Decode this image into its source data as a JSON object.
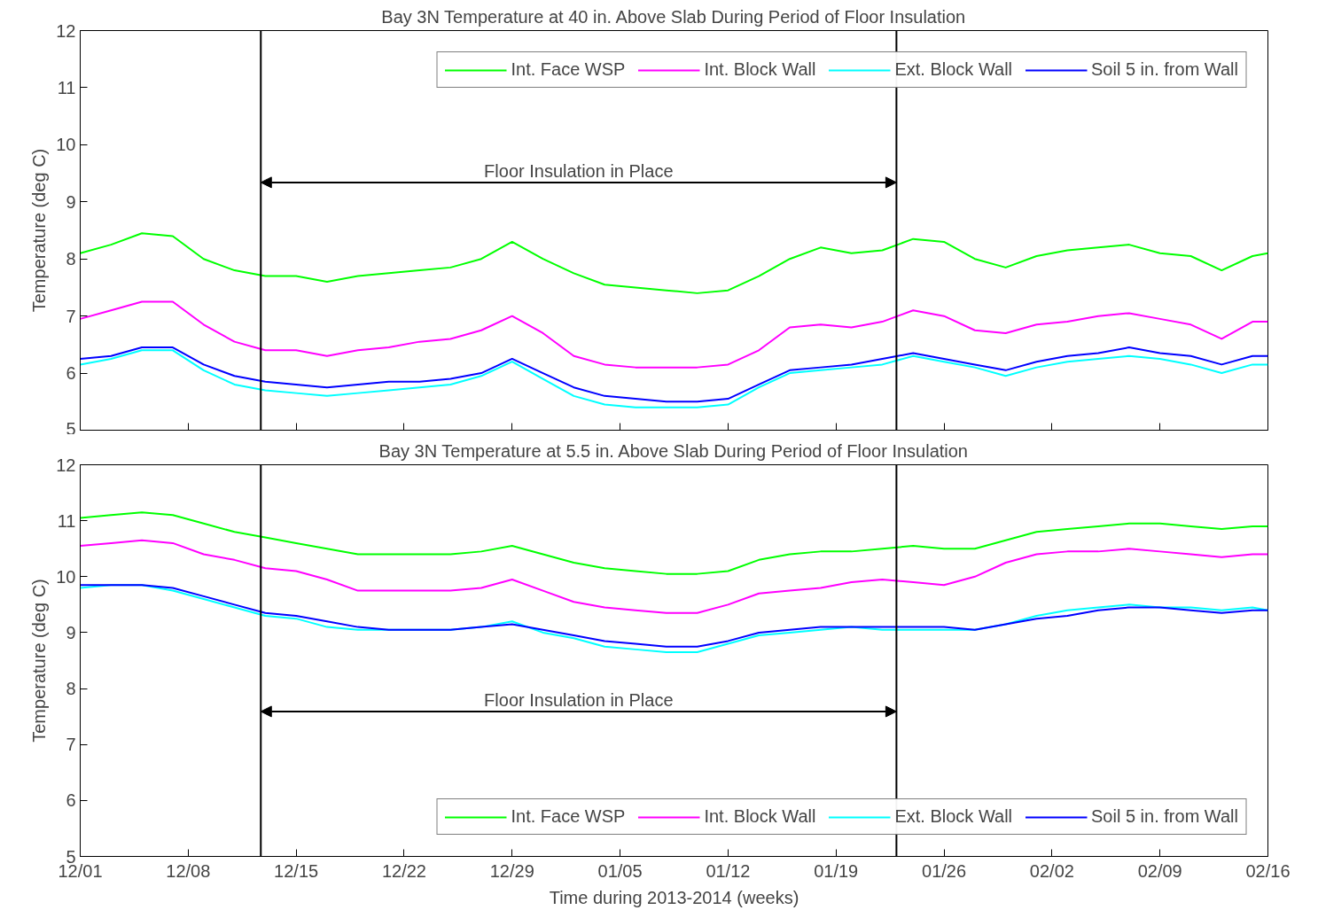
{
  "chart_data": [
    {
      "type": "line",
      "title": "Bay 3N Temperature at 40 in. Above Slab During Period of Floor Insulation",
      "ylabel": "Temperature (deg C)",
      "x": [
        "2013-12-01",
        "2013-12-03",
        "2013-12-05",
        "2013-12-07",
        "2013-12-09",
        "2013-12-11",
        "2013-12-13",
        "2013-12-15",
        "2013-12-17",
        "2013-12-19",
        "2013-12-21",
        "2013-12-23",
        "2013-12-25",
        "2013-12-27",
        "2013-12-29",
        "2013-12-31",
        "2014-01-02",
        "2014-01-04",
        "2014-01-06",
        "2014-01-08",
        "2014-01-10",
        "2014-01-12",
        "2014-01-14",
        "2014-01-16",
        "2014-01-18",
        "2014-01-20",
        "2014-01-22",
        "2014-01-24",
        "2014-01-26",
        "2014-01-28",
        "2014-01-30",
        "2014-02-01",
        "2014-02-03",
        "2014-02-05",
        "2014-02-07",
        "2014-02-09",
        "2014-02-11",
        "2014-02-13",
        "2014-02-15",
        "2014-02-16"
      ],
      "series": [
        {
          "name": "Int. Face WSP",
          "color": "#00ff00",
          "values": [
            8.1,
            8.25,
            8.45,
            8.4,
            8.0,
            7.8,
            7.7,
            7.7,
            7.6,
            7.7,
            7.75,
            7.8,
            7.85,
            8.0,
            8.3,
            8.0,
            7.75,
            7.55,
            7.5,
            7.45,
            7.4,
            7.45,
            7.7,
            8.0,
            8.2,
            8.1,
            8.15,
            8.35,
            8.3,
            8.0,
            7.85,
            8.05,
            8.15,
            8.2,
            8.25,
            8.1,
            8.05,
            7.8,
            8.05,
            8.1
          ]
        },
        {
          "name": "Int. Block Wall",
          "color": "#ff00ff",
          "values": [
            6.95,
            7.1,
            7.25,
            7.25,
            6.85,
            6.55,
            6.4,
            6.4,
            6.3,
            6.4,
            6.45,
            6.55,
            6.6,
            6.75,
            7.0,
            6.7,
            6.3,
            6.15,
            6.1,
            6.1,
            6.1,
            6.15,
            6.4,
            6.8,
            6.85,
            6.8,
            6.9,
            7.1,
            7.0,
            6.75,
            6.7,
            6.85,
            6.9,
            7.0,
            7.05,
            6.95,
            6.85,
            6.6,
            6.9,
            6.9
          ]
        },
        {
          "name": "Ext. Block Wall",
          "color": "#00ffff",
          "values": [
            6.15,
            6.25,
            6.4,
            6.4,
            6.05,
            5.8,
            5.7,
            5.65,
            5.6,
            5.65,
            5.7,
            5.75,
            5.8,
            5.95,
            6.2,
            5.9,
            5.6,
            5.45,
            5.4,
            5.4,
            5.4,
            5.45,
            5.75,
            6.0,
            6.05,
            6.1,
            6.15,
            6.3,
            6.2,
            6.1,
            5.95,
            6.1,
            6.2,
            6.25,
            6.3,
            6.25,
            6.15,
            6.0,
            6.15,
            6.15
          ]
        },
        {
          "name": "Soil 5 in. from Wall",
          "color": "#0000ff",
          "values": [
            6.25,
            6.3,
            6.45,
            6.45,
            6.15,
            5.95,
            5.85,
            5.8,
            5.75,
            5.8,
            5.85,
            5.85,
            5.9,
            6.0,
            6.25,
            6.0,
            5.75,
            5.6,
            5.55,
            5.5,
            5.5,
            5.55,
            5.8,
            6.05,
            6.1,
            6.15,
            6.25,
            6.35,
            6.25,
            6.15,
            6.05,
            6.2,
            6.3,
            6.35,
            6.45,
            6.35,
            6.3,
            6.15,
            6.3,
            6.3
          ]
        }
      ],
      "xlim": [
        "2013-12-01",
        "2014-02-16"
      ],
      "xticks": [
        {
          "value": "2013-12-01",
          "label": null
        },
        {
          "value": "2013-12-08",
          "label": null
        },
        {
          "value": "2013-12-15",
          "label": null
        },
        {
          "value": "2013-12-22",
          "label": null
        },
        {
          "value": "2013-12-29",
          "label": null
        },
        {
          "value": "2014-01-05",
          "label": null
        },
        {
          "value": "2014-01-12",
          "label": null
        },
        {
          "value": "2014-01-19",
          "label": null
        },
        {
          "value": "2014-01-26",
          "label": null
        },
        {
          "value": "2014-02-02",
          "label": null
        },
        {
          "value": "2014-02-09",
          "label": null
        },
        {
          "value": "2014-02-16",
          "label": null
        }
      ],
      "ylim": [
        5,
        12
      ],
      "yticks": [
        5,
        6,
        7,
        8,
        9,
        10,
        11,
        12
      ],
      "tick_labels": "y",
      "grid": false,
      "legend": "top right",
      "ref_lines": [
        {
          "axis": "x",
          "value": "2013-12-12T17:00",
          "color": "#000000"
        },
        {
          "axis": "x",
          "value": "2014-01-22T22:00",
          "color": "#000000"
        }
      ],
      "annotations": [
        "Floor Insulation in Place"
      ]
    },
    {
      "type": "line",
      "title": "Bay 3N Temperature at 5.5 in. Above Slab During Period of Floor Insulation",
      "ylabel": "Temperature (deg C)",
      "xlabel": "Time during 2013-2014 (weeks)",
      "x": [
        "2013-12-01",
        "2013-12-03",
        "2013-12-05",
        "2013-12-07",
        "2013-12-09",
        "2013-12-11",
        "2013-12-13",
        "2013-12-15",
        "2013-12-17",
        "2013-12-19",
        "2013-12-21",
        "2013-12-23",
        "2013-12-25",
        "2013-12-27",
        "2013-12-29",
        "2013-12-31",
        "2014-01-02",
        "2014-01-04",
        "2014-01-06",
        "2014-01-08",
        "2014-01-10",
        "2014-01-12",
        "2014-01-14",
        "2014-01-16",
        "2014-01-18",
        "2014-01-20",
        "2014-01-22",
        "2014-01-24",
        "2014-01-26",
        "2014-01-28",
        "2014-01-30",
        "2014-02-01",
        "2014-02-03",
        "2014-02-05",
        "2014-02-07",
        "2014-02-09",
        "2014-02-11",
        "2014-02-13",
        "2014-02-15",
        "2014-02-16"
      ],
      "series": [
        {
          "name": "Int. Face WSP",
          "color": "#00ff00",
          "values": [
            11.05,
            11.1,
            11.15,
            11.1,
            10.95,
            10.8,
            10.7,
            10.6,
            10.5,
            10.4,
            10.4,
            10.4,
            10.4,
            10.45,
            10.55,
            10.4,
            10.25,
            10.15,
            10.1,
            10.05,
            10.05,
            10.1,
            10.3,
            10.4,
            10.45,
            10.45,
            10.5,
            10.55,
            10.5,
            10.5,
            10.65,
            10.8,
            10.85,
            10.9,
            10.95,
            10.95,
            10.9,
            10.85,
            10.9,
            10.9
          ]
        },
        {
          "name": "Int. Block Wall",
          "color": "#ff00ff",
          "values": [
            10.55,
            10.6,
            10.65,
            10.6,
            10.4,
            10.3,
            10.15,
            10.1,
            9.95,
            9.75,
            9.75,
            9.75,
            9.75,
            9.8,
            9.95,
            9.75,
            9.55,
            9.45,
            9.4,
            9.35,
            9.35,
            9.5,
            9.7,
            9.75,
            9.8,
            9.9,
            9.95,
            9.9,
            9.85,
            10.0,
            10.25,
            10.4,
            10.45,
            10.45,
            10.5,
            10.45,
            10.4,
            10.35,
            10.4,
            10.4
          ]
        },
        {
          "name": "Ext. Block Wall",
          "color": "#00ffff",
          "values": [
            9.8,
            9.85,
            9.85,
            9.75,
            9.6,
            9.45,
            9.3,
            9.25,
            9.1,
            9.05,
            9.05,
            9.05,
            9.05,
            9.1,
            9.2,
            9.0,
            8.9,
            8.75,
            8.7,
            8.65,
            8.65,
            8.8,
            8.95,
            9.0,
            9.05,
            9.1,
            9.05,
            9.05,
            9.05,
            9.05,
            9.15,
            9.3,
            9.4,
            9.45,
            9.5,
            9.45,
            9.45,
            9.4,
            9.45,
            9.4
          ]
        },
        {
          "name": "Soil 5 in. from Wall",
          "color": "#0000ff",
          "values": [
            9.85,
            9.85,
            9.85,
            9.8,
            9.65,
            9.5,
            9.35,
            9.3,
            9.2,
            9.1,
            9.05,
            9.05,
            9.05,
            9.1,
            9.15,
            9.05,
            8.95,
            8.85,
            8.8,
            8.75,
            8.75,
            8.85,
            9.0,
            9.05,
            9.1,
            9.1,
            9.1,
            9.1,
            9.1,
            9.05,
            9.15,
            9.25,
            9.3,
            9.4,
            9.45,
            9.45,
            9.4,
            9.35,
            9.4,
            9.4
          ]
        }
      ],
      "xlim": [
        "2013-12-01",
        "2014-02-16"
      ],
      "xticks": [
        {
          "value": "2013-12-01",
          "label": "12/01"
        },
        {
          "value": "2013-12-08",
          "label": "12/08"
        },
        {
          "value": "2013-12-15",
          "label": "12/15"
        },
        {
          "value": "2013-12-22",
          "label": "12/22"
        },
        {
          "value": "2013-12-29",
          "label": "12/29"
        },
        {
          "value": "2014-01-05",
          "label": "01/05"
        },
        {
          "value": "2014-01-12",
          "label": "01/12"
        },
        {
          "value": "2014-01-19",
          "label": "01/19"
        },
        {
          "value": "2014-01-26",
          "label": "01/26"
        },
        {
          "value": "2014-02-02",
          "label": "02/02"
        },
        {
          "value": "2014-02-09",
          "label": "02/09"
        },
        {
          "value": "2014-02-16",
          "label": "02/16"
        }
      ],
      "ylim": [
        5,
        12
      ],
      "yticks": [
        5,
        6,
        7,
        8,
        9,
        10,
        11,
        12
      ],
      "grid": false,
      "legend": "bottom right",
      "ref_lines": [
        {
          "axis": "x",
          "value": "2013-12-12T17:00",
          "color": "#000000"
        },
        {
          "axis": "x",
          "value": "2014-01-22T22:00",
          "color": "#000000"
        }
      ],
      "annotations": [
        "Floor Insulation in Place"
      ]
    }
  ]
}
